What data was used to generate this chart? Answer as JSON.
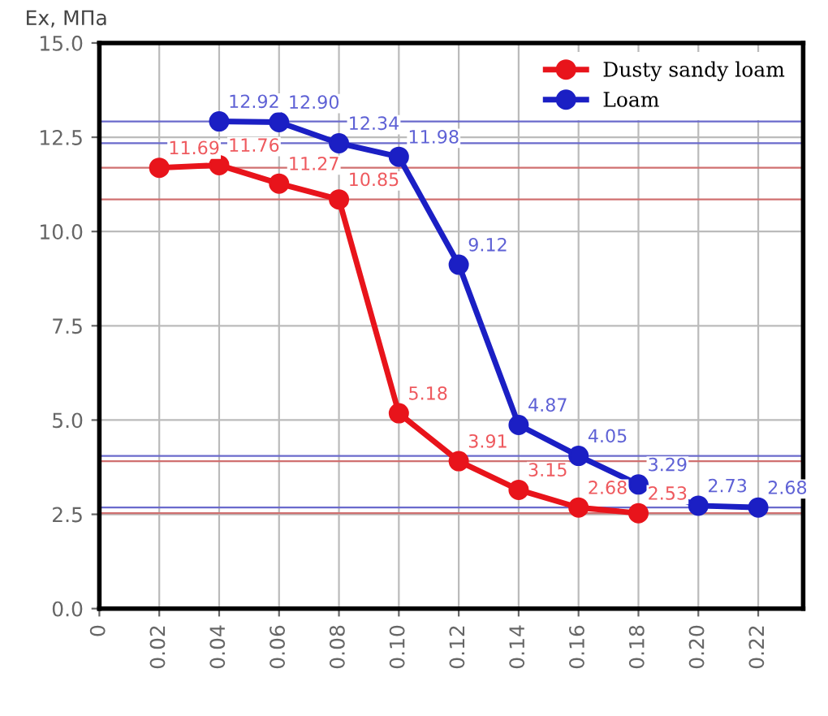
{
  "chart_data": {
    "type": "line",
    "ylabel": "Ex, МПа",
    "x": [
      0.02,
      0.04,
      0.06,
      0.08,
      0.1,
      0.12,
      0.14,
      0.16,
      0.18,
      0.2,
      0.22
    ],
    "series": [
      {
        "name": "Dusty sandy loam",
        "color": "#e8141b",
        "values": [
          11.69,
          11.76,
          11.27,
          10.85,
          5.18,
          3.91,
          3.15,
          2.68,
          2.53,
          null,
          null
        ],
        "value_labels": [
          "11.69",
          "11.76",
          "11.27",
          "10.85",
          "5.18",
          "3.91",
          "3.15",
          "2.68",
          "2.53",
          null,
          null
        ]
      },
      {
        "name": "Loam",
        "color": "#1b1fc4",
        "values": [
          null,
          12.92,
          12.9,
          12.34,
          11.98,
          9.12,
          4.87,
          4.05,
          3.29,
          2.73,
          2.68
        ],
        "value_labels": [
          null,
          "12.92",
          "12.90",
          "12.34",
          "11.98",
          "9.12",
          "4.87",
          "4.05",
          "3.29",
          "2.73",
          "2.68"
        ]
      }
    ],
    "marker": "circle",
    "line_style": "solid",
    "grid": true,
    "legend": "top right",
    "xlim": [
      0,
      0.235
    ],
    "xticks": [
      0,
      {
        "value": 0.02,
        "label": "0.02"
      },
      {
        "value": 0.04,
        "label": "0.04"
      },
      {
        "value": 0.06,
        "label": "0.06"
      },
      {
        "value": 0.08,
        "label": "0.08"
      },
      {
        "value": 0.1,
        "label": "0.10"
      },
      {
        "value": 0.12,
        "label": "0.12"
      },
      {
        "value": 0.14,
        "label": "0.14"
      },
      {
        "value": 0.16,
        "label": "0.16"
      },
      {
        "value": 0.18,
        "label": "0.18"
      },
      {
        "value": 0.2,
        "label": "0.20"
      },
      {
        "value": 0.22,
        "label": "0.22"
      }
    ],
    "ylim": [
      0,
      15
    ],
    "yticks": [
      {
        "value": 0,
        "label": "0.0"
      },
      {
        "value": 2.5,
        "label": "2.5"
      },
      {
        "value": 5,
        "label": "5.0"
      },
      {
        "value": 7.5,
        "label": "7.5"
      },
      {
        "value": 10,
        "label": "10.0"
      },
      {
        "value": 12.5,
        "label": "12.5"
      },
      {
        "value": 15,
        "label": "15.0"
      }
    ],
    "ref_lines": [
      {
        "axis": "y",
        "value": 12.92,
        "color": "#6a6acc"
      },
      {
        "axis": "y",
        "value": 12.34,
        "color": "#6a6acc"
      },
      {
        "axis": "y",
        "value": 4.05,
        "color": "#6a6acc"
      },
      {
        "axis": "y",
        "value": 2.68,
        "color": "#6a6acc"
      },
      {
        "axis": "y",
        "value": 11.69,
        "color": "#d07070"
      },
      {
        "axis": "y",
        "value": 10.85,
        "color": "#d07070"
      },
      {
        "axis": "y",
        "value": 3.91,
        "color": "#d07070"
      },
      {
        "axis": "y",
        "value": 2.53,
        "color": "#d07070"
      }
    ]
  }
}
